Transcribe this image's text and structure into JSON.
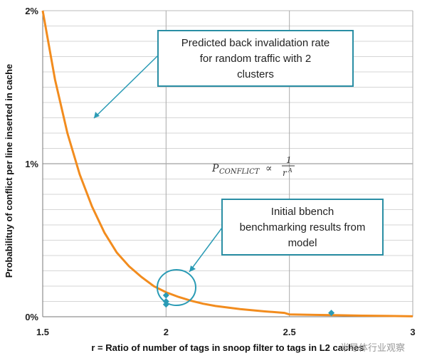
{
  "chart_data": {
    "type": "line",
    "title": "",
    "xlabel": "r = Ratio of number of tags in snoop filter to tags in L2 caches",
    "ylabel": "Probabilituy of conflict per line inserted in cache",
    "xlim": [
      1.5,
      3
    ],
    "ylim": [
      0,
      2
    ],
    "x_ticks": [
      "1.5",
      "2",
      "2.5",
      "3"
    ],
    "y_ticks": [
      "0%",
      "1%",
      "2%"
    ],
    "series": [
      {
        "name": "Predicted back invalidation rate",
        "color": "#f28c1e",
        "x": [
          1.5,
          1.55,
          1.6,
          1.65,
          1.7,
          1.75,
          1.8,
          1.85,
          1.9,
          1.95,
          2.0,
          2.05,
          2.1,
          2.15,
          2.2,
          2.3,
          2.4,
          2.48,
          2.5,
          2.6,
          2.7,
          2.8,
          2.9,
          3.0
        ],
        "values": [
          2.0,
          1.55,
          1.2,
          0.93,
          0.72,
          0.55,
          0.42,
          0.33,
          0.26,
          0.2,
          0.16,
          0.13,
          0.105,
          0.085,
          0.07,
          0.05,
          0.035,
          0.025,
          0.015,
          0.012,
          0.01,
          0.007,
          0.005,
          0.003
        ]
      }
    ],
    "markers": {
      "name": "Initial bbench benchmarking results",
      "color": "#2a9bb5",
      "points": [
        {
          "x": 2.0,
          "y": 0.14
        },
        {
          "x": 2.0,
          "y": 0.1
        },
        {
          "x": 2.0,
          "y": 0.08
        },
        {
          "x": 2.67,
          "y": 0.025
        }
      ]
    }
  },
  "annotations": {
    "callout_top": [
      "Predicted back invalidation rate",
      "for random traffic with 2",
      "clusters"
    ],
    "callout_bottom": [
      "Initial bbench",
      "benchmarking results from",
      "model"
    ],
    "formula_main": "P",
    "formula_sub": "CONFLICT",
    "formula_prop": "∝",
    "formula_num": "1",
    "formula_den": "r",
    "formula_exp": "A"
  },
  "watermark": "半导体行业观察",
  "colors": {
    "curve": "#f28c1e",
    "marker": "#2a9bb5",
    "callout_border": "#2a8ea4",
    "grid": "#d6d6d6"
  }
}
